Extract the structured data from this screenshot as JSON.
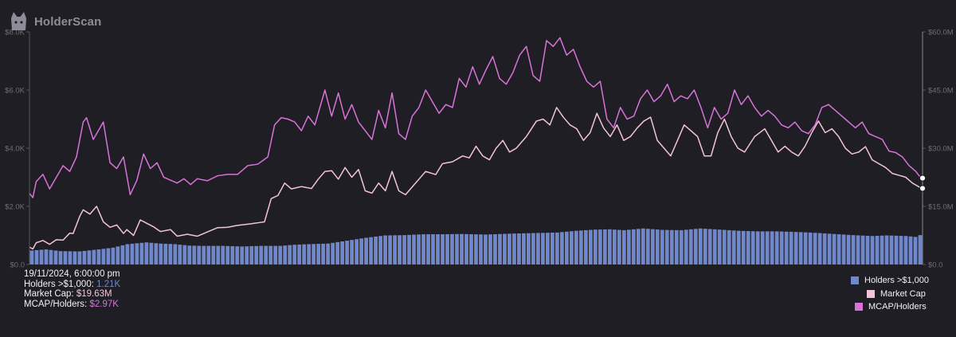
{
  "app": {
    "brand_name": "HolderScan",
    "logo_icon": "cat-head-icon"
  },
  "tooltip": {
    "date": "19/11/2024, 6:00:00 pm",
    "rows": [
      {
        "label": "Holders >$1,000:",
        "value": "1.21K",
        "color": "#6f87cc"
      },
      {
        "label": "Market Cap:",
        "value": "$19.63M",
        "color": "#f3c3d8"
      },
      {
        "label": "MCAP/Holders:",
        "value": "$2.97K",
        "color": "#d873d8"
      }
    ]
  },
  "legend": [
    {
      "label": "Holders >$1,000",
      "color": "#6f87cc"
    },
    {
      "label": "Market Cap",
      "color": "#f3c3d8"
    },
    {
      "label": "MCAP/Holders",
      "color": "#d873d8"
    }
  ],
  "chart_data": {
    "type": "bar-line-combo",
    "grid": false,
    "legend_position": "bottom-right",
    "left_axis": {
      "range": [
        0,
        8000
      ],
      "ticks": [
        "$0.0",
        "$2.0K",
        "$4.0K",
        "$6.0K",
        "$8.0K"
      ],
      "values": [
        0,
        2000,
        4000,
        6000,
        8000
      ]
    },
    "right_axis": {
      "range": [
        0,
        60
      ],
      "ticks": [
        "$0.0",
        "$15.0M",
        "$30.0M",
        "$45.0M",
        "$60.0M"
      ],
      "values": [
        0,
        15,
        30,
        45,
        60
      ]
    },
    "colors": {
      "holders": "#6f87cc",
      "mcap": "#f3c3d8",
      "ratio": "#d873d8",
      "bg": "#1f1e24",
      "axis": "#55545c"
    },
    "series": [
      {
        "name": "Holders >$1,000",
        "type": "bar",
        "axis": "left",
        "keyframes": [
          [
            0,
            480
          ],
          [
            3,
            520
          ],
          [
            6,
            460
          ],
          [
            10,
            450
          ],
          [
            14,
            520
          ],
          [
            17,
            580
          ],
          [
            20,
            700
          ],
          [
            24,
            760
          ],
          [
            27,
            720
          ],
          [
            30,
            700
          ],
          [
            33,
            650
          ],
          [
            36,
            640
          ],
          [
            40,
            640
          ],
          [
            44,
            620
          ],
          [
            48,
            640
          ],
          [
            52,
            640
          ],
          [
            55,
            680
          ],
          [
            58,
            700
          ],
          [
            62,
            720
          ],
          [
            66,
            820
          ],
          [
            70,
            920
          ],
          [
            74,
            1000
          ],
          [
            78,
            1010
          ],
          [
            82,
            1040
          ],
          [
            86,
            1040
          ],
          [
            90,
            1050
          ],
          [
            95,
            1030
          ],
          [
            100,
            1060
          ],
          [
            105,
            1080
          ],
          [
            110,
            1100
          ],
          [
            114,
            1160
          ],
          [
            118,
            1200
          ],
          [
            121,
            1210
          ],
          [
            124,
            1180
          ],
          [
            128,
            1240
          ],
          [
            132,
            1190
          ],
          [
            136,
            1180
          ],
          [
            140,
            1240
          ],
          [
            144,
            1200
          ],
          [
            148,
            1160
          ],
          [
            152,
            1140
          ],
          [
            156,
            1140
          ],
          [
            160,
            1120
          ],
          [
            164,
            1090
          ],
          [
            168,
            1050
          ],
          [
            172,
            1010
          ],
          [
            176,
            980
          ],
          [
            179,
            1000
          ],
          [
            183,
            980
          ],
          [
            185,
            950
          ],
          [
            186,
            1010
          ]
        ]
      },
      {
        "name": "Market Cap",
        "type": "line",
        "axis": "right",
        "keyframes": [
          [
            0,
            4.5
          ],
          [
            1,
            4
          ],
          [
            2,
            5.6
          ],
          [
            4,
            6.2
          ],
          [
            6,
            5.2
          ],
          [
            8,
            6.4
          ],
          [
            10,
            6.3
          ],
          [
            12,
            8.1
          ],
          [
            13,
            8
          ],
          [
            15,
            12.5
          ],
          [
            16,
            14.1
          ],
          [
            18,
            13
          ],
          [
            20,
            15
          ],
          [
            22,
            11
          ],
          [
            24,
            9.6
          ],
          [
            26,
            10.2
          ],
          [
            28,
            8
          ],
          [
            29,
            9
          ],
          [
            31,
            7.5
          ],
          [
            33,
            11.5
          ],
          [
            35,
            10.6
          ],
          [
            37,
            9.7
          ],
          [
            39,
            8.5
          ],
          [
            42,
            9
          ],
          [
            44,
            7.3
          ],
          [
            47,
            7.8
          ],
          [
            50,
            7.3
          ],
          [
            53,
            8.4
          ],
          [
            56,
            9.5
          ],
          [
            59,
            9.6
          ],
          [
            62,
            10.1
          ],
          [
            66,
            10.5
          ],
          [
            70,
            11
          ],
          [
            72,
            17
          ],
          [
            74,
            17.8
          ],
          [
            76,
            21
          ],
          [
            78,
            19.5
          ],
          [
            81,
            20.1
          ],
          [
            84,
            19.6
          ],
          [
            86,
            22
          ],
          [
            88,
            24
          ],
          [
            90,
            24.2
          ],
          [
            92,
            22
          ],
          [
            94,
            25
          ],
          [
            96,
            22.5
          ],
          [
            98,
            24.5
          ],
          [
            100,
            19
          ],
          [
            102,
            18.4
          ],
          [
            104,
            21
          ],
          [
            106,
            19
          ],
          [
            108,
            24
          ],
          [
            110,
            19
          ],
          [
            112,
            18
          ],
          [
            114,
            20
          ],
          [
            116,
            22
          ],
          [
            118,
            24
          ],
          [
            121,
            23.2
          ],
          [
            123,
            26
          ],
          [
            126,
            26.5
          ],
          [
            129,
            28
          ],
          [
            131,
            27.5
          ],
          [
            133,
            30.5
          ],
          [
            135,
            28
          ],
          [
            137,
            27
          ],
          [
            139,
            30
          ],
          [
            141,
            32
          ],
          [
            143,
            29
          ],
          [
            145,
            30
          ],
          [
            148,
            33
          ],
          [
            151,
            37
          ],
          [
            153,
            37.5
          ],
          [
            155,
            36
          ],
          [
            157,
            40.5
          ],
          [
            159,
            38
          ],
          [
            161,
            36
          ],
          [
            163,
            35
          ],
          [
            165,
            32
          ],
          [
            167,
            34
          ],
          [
            169,
            39
          ],
          [
            171,
            35.2
          ],
          [
            173,
            33
          ],
          [
            175,
            36
          ],
          [
            177,
            32
          ],
          [
            179,
            33
          ],
          [
            181,
            35.2
          ],
          [
            183,
            37
          ],
          [
            185,
            38
          ],
          [
            187,
            32
          ],
          [
            189,
            30
          ],
          [
            191,
            28
          ],
          [
            193,
            32
          ],
          [
            195,
            36
          ],
          [
            197,
            34.5
          ],
          [
            199,
            33
          ],
          [
            201,
            28
          ],
          [
            203,
            28
          ],
          [
            205,
            34
          ],
          [
            207,
            37.5
          ],
          [
            209,
            33
          ],
          [
            211,
            30
          ],
          [
            213,
            29
          ],
          [
            216,
            33
          ],
          [
            219,
            35
          ],
          [
            221,
            32
          ],
          [
            223,
            29
          ],
          [
            225,
            30.5
          ],
          [
            227,
            29
          ],
          [
            229,
            28
          ],
          [
            231,
            30.5
          ],
          [
            233,
            34
          ],
          [
            235,
            37
          ],
          [
            237,
            34
          ],
          [
            239,
            35
          ],
          [
            241,
            33
          ],
          [
            243,
            30
          ],
          [
            245,
            28.5
          ],
          [
            247,
            29
          ],
          [
            249,
            30.4
          ],
          [
            251,
            27
          ],
          [
            253,
            26
          ],
          [
            255,
            25
          ],
          [
            257,
            23.5
          ],
          [
            259,
            23
          ],
          [
            261,
            22.5
          ],
          [
            263,
            21
          ],
          [
            265,
            20
          ],
          [
            266,
            19.63
          ]
        ]
      },
      {
        "name": "MCAP/Holders",
        "type": "line",
        "axis": "left",
        "keyframes": [
          [
            0,
            2450
          ],
          [
            1,
            2300
          ],
          [
            2,
            2850
          ],
          [
            4,
            3100
          ],
          [
            6,
            2600
          ],
          [
            8,
            3000
          ],
          [
            10,
            3400
          ],
          [
            12,
            3200
          ],
          [
            14,
            3700
          ],
          [
            16,
            4900
          ],
          [
            17,
            5050
          ],
          [
            19,
            4300
          ],
          [
            21,
            4700
          ],
          [
            22,
            4900
          ],
          [
            24,
            3500
          ],
          [
            26,
            3300
          ],
          [
            28,
            3700
          ],
          [
            30,
            2400
          ],
          [
            32,
            2900
          ],
          [
            34,
            3800
          ],
          [
            36,
            3300
          ],
          [
            38,
            3500
          ],
          [
            40,
            3000
          ],
          [
            42,
            2900
          ],
          [
            44,
            2800
          ],
          [
            46,
            2950
          ],
          [
            48,
            2750
          ],
          [
            50,
            2950
          ],
          [
            53,
            2880
          ],
          [
            56,
            3050
          ],
          [
            59,
            3100
          ],
          [
            62,
            3100
          ],
          [
            65,
            3400
          ],
          [
            68,
            3450
          ],
          [
            71,
            3700
          ],
          [
            73,
            4800
          ],
          [
            75,
            5050
          ],
          [
            77,
            5000
          ],
          [
            79,
            4900
          ],
          [
            81,
            4600
          ],
          [
            83,
            5100
          ],
          [
            85,
            4800
          ],
          [
            87,
            5600
          ],
          [
            88,
            6000
          ],
          [
            90,
            5100
          ],
          [
            92,
            5900
          ],
          [
            94,
            5000
          ],
          [
            96,
            5500
          ],
          [
            98,
            4900
          ],
          [
            100,
            4600
          ],
          [
            102,
            4300
          ],
          [
            104,
            5300
          ],
          [
            106,
            4700
          ],
          [
            108,
            5900
          ],
          [
            110,
            4500
          ],
          [
            112,
            4300
          ],
          [
            114,
            5100
          ],
          [
            116,
            5400
          ],
          [
            118,
            6000
          ],
          [
            120,
            5600
          ],
          [
            122,
            5200
          ],
          [
            124,
            5500
          ],
          [
            126,
            5400
          ],
          [
            128,
            6400
          ],
          [
            130,
            6100
          ],
          [
            132,
            6800
          ],
          [
            134,
            6200
          ],
          [
            136,
            6700
          ],
          [
            138,
            7150
          ],
          [
            140,
            6400
          ],
          [
            142,
            6200
          ],
          [
            144,
            6600
          ],
          [
            146,
            7200
          ],
          [
            148,
            7500
          ],
          [
            150,
            6500
          ],
          [
            152,
            6300
          ],
          [
            154,
            7700
          ],
          [
            156,
            7500
          ],
          [
            158,
            7800
          ],
          [
            160,
            7200
          ],
          [
            162,
            7400
          ],
          [
            164,
            6800
          ],
          [
            166,
            6300
          ],
          [
            168,
            6100
          ],
          [
            170,
            6300
          ],
          [
            172,
            5000
          ],
          [
            174,
            4700
          ],
          [
            176,
            5400
          ],
          [
            178,
            5000
          ],
          [
            180,
            5100
          ],
          [
            182,
            5700
          ],
          [
            184,
            6000
          ],
          [
            186,
            5600
          ],
          [
            188,
            5800
          ],
          [
            190,
            6200
          ],
          [
            192,
            5600
          ],
          [
            194,
            5800
          ],
          [
            196,
            5700
          ],
          [
            198,
            6000
          ],
          [
            200,
            5400
          ],
          [
            202,
            4700
          ],
          [
            204,
            5400
          ],
          [
            206,
            5000
          ],
          [
            208,
            5200
          ],
          [
            210,
            6000
          ],
          [
            212,
            5500
          ],
          [
            214,
            5800
          ],
          [
            216,
            5400
          ],
          [
            218,
            5100
          ],
          [
            220,
            5300
          ],
          [
            222,
            5100
          ],
          [
            224,
            4800
          ],
          [
            226,
            4700
          ],
          [
            228,
            4900
          ],
          [
            230,
            4600
          ],
          [
            232,
            4500
          ],
          [
            234,
            4800
          ],
          [
            236,
            5400
          ],
          [
            238,
            5500
          ],
          [
            240,
            5300
          ],
          [
            242,
            5100
          ],
          [
            244,
            4900
          ],
          [
            246,
            4700
          ],
          [
            248,
            4900
          ],
          [
            250,
            4500
          ],
          [
            252,
            4400
          ],
          [
            254,
            4300
          ],
          [
            256,
            3900
          ],
          [
            258,
            3850
          ],
          [
            260,
            3700
          ],
          [
            262,
            3400
          ],
          [
            264,
            3200
          ],
          [
            265,
            3050
          ],
          [
            266,
            2970
          ]
        ]
      }
    ]
  }
}
